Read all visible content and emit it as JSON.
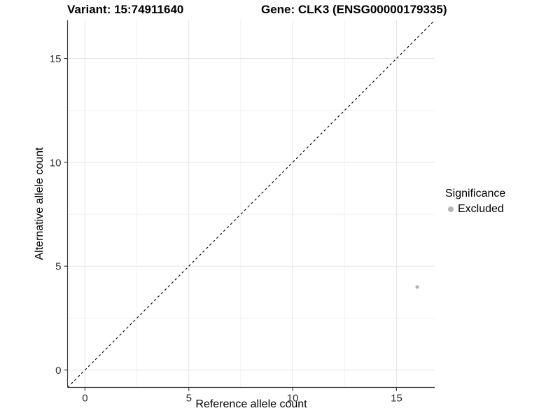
{
  "chart_data": {
    "type": "scatter",
    "title_left": "Variant: 15:74911640",
    "title_right": "Gene: CLK3 (ENSG00000179335)",
    "xlabel": "Reference allele count",
    "ylabel": "Alternative allele count",
    "xlim": [
      -0.84,
      16.84
    ],
    "ylim": [
      -0.84,
      16.84
    ],
    "x_ticks": [
      0,
      5,
      10,
      15
    ],
    "y_ticks": [
      0,
      5,
      10,
      15
    ],
    "x_minor_ticks": [
      2.5,
      7.5,
      12.5
    ],
    "y_minor_ticks": [
      2.5,
      7.5,
      12.5
    ],
    "grid": true,
    "legend_position": "right",
    "series": [
      {
        "name": "Excluded",
        "color": "#b5b5b5",
        "points": [
          {
            "x": 16,
            "y": 4
          }
        ]
      }
    ],
    "reference_line": {
      "type": "identity",
      "slope": 1,
      "intercept": 0,
      "style": "dashed",
      "color": "#000000"
    },
    "legend": {
      "title": "Significance",
      "items": [
        {
          "label": "Excluded",
          "color": "#b5b5b5"
        }
      ]
    },
    "style": {
      "background_color": "#ffffff",
      "grid_major_color": "#e3e3e3",
      "grid_minor_color": "#f0f0f0",
      "axis_line_color": "#3c3c3c",
      "tick_label_color": "#2b2b2b",
      "point_radius": 2.6
    }
  }
}
